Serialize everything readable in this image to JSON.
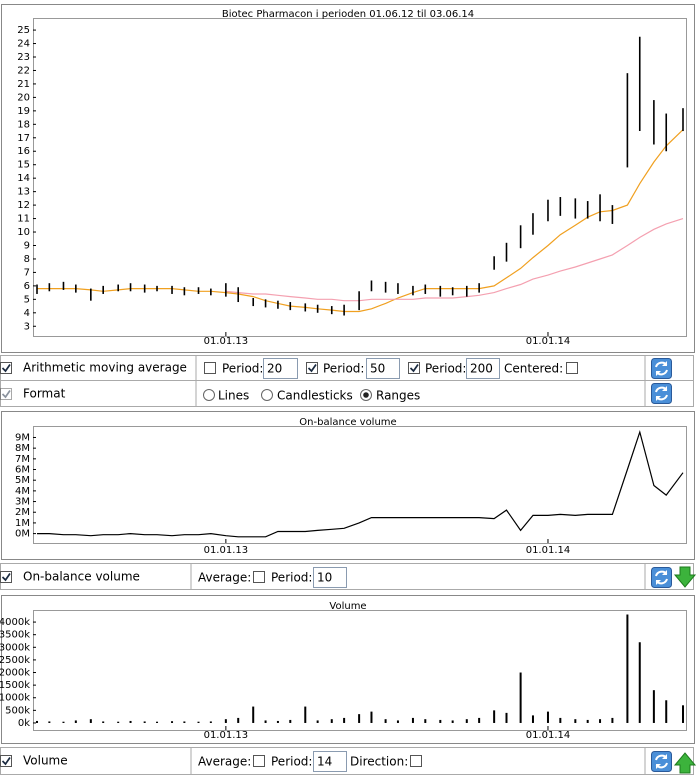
{
  "chart_data": [
    {
      "type": "range",
      "title": "Biotec Pharmacon i perioden 01.06.12 til 03.06.14",
      "x": [
        "01.06.12",
        "15.06.12",
        "01.07.12",
        "15.07.12",
        "01.08.12",
        "15.08.12",
        "01.09.12",
        "15.09.12",
        "01.10.12",
        "15.10.12",
        "01.11.12",
        "15.11.12",
        "01.12.12",
        "15.12.12",
        "01.01.13",
        "15.01.13",
        "01.02.13",
        "15.02.13",
        "01.03.13",
        "15.03.13",
        "01.04.13",
        "15.04.13",
        "01.05.13",
        "15.05.13",
        "01.06.13",
        "15.06.13",
        "01.07.13",
        "15.07.13",
        "01.08.13",
        "15.08.13",
        "01.09.13",
        "15.09.13",
        "01.10.13",
        "15.10.13",
        "01.11.13",
        "15.11.13",
        "01.12.13",
        "15.12.13",
        "01.01.14",
        "15.01.14",
        "01.02.14",
        "15.02.14",
        "01.03.14",
        "15.03.14",
        "01.04.14",
        "15.04.14",
        "01.05.14",
        "15.05.14",
        "03.06.14"
      ],
      "color": "#000000",
      "low": [
        5.4,
        5.6,
        5.7,
        5.5,
        4.9,
        5.4,
        5.6,
        5.6,
        5.5,
        5.6,
        5.4,
        5.3,
        5.4,
        5.3,
        5.2,
        4.8,
        4.5,
        4.4,
        4.3,
        4.2,
        4.1,
        4.0,
        3.9,
        3.8,
        4.2,
        5.6,
        5.5,
        5.4,
        5.3,
        5.4,
        5.2,
        5.3,
        5.2,
        5.5,
        7.2,
        7.8,
        8.8,
        9.8,
        10.8,
        11.2,
        11.0,
        11.0,
        10.8,
        10.6,
        14.8,
        17.5,
        16.5,
        16.0,
        17.5
      ],
      "high": [
        6.1,
        6.2,
        6.3,
        6.1,
        5.8,
        6.0,
        6.1,
        6.2,
        6.1,
        6.0,
        6.0,
        5.9,
        5.9,
        5.8,
        6.2,
        5.9,
        5.1,
        5.0,
        4.9,
        4.8,
        4.7,
        4.6,
        4.5,
        4.6,
        5.6,
        6.4,
        6.3,
        6.2,
        6.0,
        6.1,
        6.0,
        5.9,
        6.0,
        6.2,
        8.2,
        9.2,
        10.5,
        11.4,
        12.4,
        12.6,
        12.5,
        12.3,
        12.8,
        12.0,
        21.8,
        24.5,
        19.8,
        18.8,
        19.2
      ],
      "series": [
        {
          "color": "#f0a020",
          "values": [
            5.8,
            5.8,
            5.8,
            5.8,
            5.7,
            5.6,
            5.7,
            5.8,
            5.8,
            5.8,
            5.8,
            5.7,
            5.6,
            5.6,
            5.5,
            5.4,
            5.2,
            4.9,
            4.7,
            4.5,
            4.4,
            4.3,
            4.2,
            4.1,
            4.1,
            4.3,
            4.7,
            5.1,
            5.5,
            5.8,
            5.8,
            5.8,
            5.8,
            5.8,
            6.0,
            6.6,
            7.3,
            8.1,
            9.0,
            9.8,
            10.5,
            11.1,
            11.5,
            11.6,
            12.0,
            13.6,
            15.2,
            16.4,
            17.6
          ]
        },
        {
          "color": "#f4a0b0",
          "values": [
            null,
            null,
            null,
            null,
            null,
            null,
            null,
            null,
            null,
            null,
            null,
            null,
            null,
            null,
            5.6,
            5.5,
            5.4,
            5.4,
            5.3,
            5.2,
            5.1,
            5.0,
            5.0,
            4.9,
            4.9,
            5.0,
            5.0,
            5.0,
            5.0,
            5.1,
            5.1,
            5.1,
            5.2,
            5.3,
            5.5,
            5.8,
            6.1,
            6.5,
            6.8,
            7.1,
            7.4,
            7.7,
            8.0,
            8.3,
            9.0,
            9.6,
            10.2,
            10.6,
            11.0
          ]
        }
      ],
      "xlim": [
        "01.06.12",
        "03.06.14"
      ],
      "xticks": [
        "01.01.13",
        "01.01.14"
      ],
      "ylim": [
        2.5,
        25.6
      ],
      "yticks": [
        3,
        4,
        5,
        6,
        7,
        8,
        9,
        10,
        11,
        12,
        13,
        14,
        15,
        16,
        17,
        18,
        19,
        20,
        21,
        22,
        23,
        24,
        25
      ],
      "grid": false
    },
    {
      "type": "line",
      "title": "On-balance volume",
      "x": [
        "01.06.12",
        "15.06.12",
        "01.07.12",
        "15.07.12",
        "01.08.12",
        "15.08.12",
        "01.09.12",
        "15.09.12",
        "01.10.12",
        "15.10.12",
        "01.11.12",
        "15.11.12",
        "01.12.12",
        "15.12.12",
        "01.01.13",
        "15.01.13",
        "01.02.13",
        "15.02.13",
        "01.03.13",
        "15.03.13",
        "01.04.13",
        "15.04.13",
        "01.05.13",
        "15.05.13",
        "01.06.13",
        "15.06.13",
        "01.07.13",
        "15.07.13",
        "01.08.13",
        "15.08.13",
        "01.09.13",
        "15.09.13",
        "01.10.13",
        "15.10.13",
        "01.11.13",
        "15.11.13",
        "01.12.13",
        "15.12.13",
        "01.01.14",
        "15.01.14",
        "01.02.14",
        "15.02.14",
        "01.03.14",
        "15.03.14",
        "01.04.14",
        "15.04.14",
        "01.05.14",
        "15.05.14",
        "03.06.14"
      ],
      "color": "#000000",
      "values": [
        0.0,
        0.0,
        -0.1,
        -0.1,
        -0.2,
        -0.1,
        -0.1,
        0.0,
        -0.1,
        -0.1,
        -0.2,
        -0.1,
        -0.1,
        0.0,
        -0.2,
        -0.3,
        -0.3,
        -0.3,
        0.2,
        0.2,
        0.2,
        0.3,
        0.4,
        0.5,
        1.0,
        1.5,
        1.5,
        1.5,
        1.5,
        1.5,
        1.5,
        1.5,
        1.5,
        1.5,
        1.4,
        2.2,
        0.3,
        1.7,
        1.7,
        1.8,
        1.7,
        1.8,
        1.8,
        1.8,
        6.0,
        9.5,
        4.5,
        3.6,
        5.7
      ],
      "xlim": [
        "01.06.12",
        "03.06.14"
      ],
      "xticks": [
        "01.01.13",
        "01.01.14"
      ],
      "ylim": [
        -0.6,
        9.7
      ],
      "yticks": [
        {
          "value": 0,
          "label": "0M"
        },
        {
          "value": 1,
          "label": "1M"
        },
        {
          "value": 2,
          "label": "2M"
        },
        {
          "value": 3,
          "label": "3M"
        },
        {
          "value": 4,
          "label": "4M"
        },
        {
          "value": 5,
          "label": "5M"
        },
        {
          "value": 6,
          "label": "6M"
        },
        {
          "value": 7,
          "label": "7M"
        },
        {
          "value": 8,
          "label": "8M"
        },
        {
          "value": 9,
          "label": "9M"
        }
      ],
      "grid": false
    },
    {
      "type": "bar",
      "title": "Volume",
      "x": [
        "01.06.12",
        "15.06.12",
        "01.07.12",
        "15.07.12",
        "01.08.12",
        "15.08.12",
        "01.09.12",
        "15.09.12",
        "01.10.12",
        "15.10.12",
        "01.11.12",
        "15.11.12",
        "01.12.12",
        "15.12.12",
        "01.01.13",
        "15.01.13",
        "01.02.13",
        "15.02.13",
        "01.03.13",
        "15.03.13",
        "01.04.13",
        "15.04.13",
        "01.05.13",
        "15.05.13",
        "01.06.13",
        "15.06.13",
        "01.07.13",
        "15.07.13",
        "01.08.13",
        "15.08.13",
        "01.09.13",
        "15.09.13",
        "01.10.13",
        "15.10.13",
        "01.11.13",
        "15.11.13",
        "01.12.13",
        "15.12.13",
        "01.01.14",
        "15.01.14",
        "01.02.14",
        "15.02.14",
        "01.03.14",
        "15.03.14",
        "01.04.14",
        "15.04.14",
        "01.05.14",
        "15.05.14",
        "03.06.14"
      ],
      "color": "#000000",
      "values": [
        80,
        60,
        50,
        100,
        150,
        60,
        50,
        80,
        60,
        50,
        70,
        60,
        50,
        60,
        150,
        200,
        650,
        100,
        80,
        120,
        650,
        100,
        150,
        200,
        350,
        450,
        150,
        100,
        200,
        150,
        120,
        100,
        150,
        200,
        500,
        400,
        2000,
        300,
        450,
        200,
        150,
        120,
        150,
        200,
        4300,
        3200,
        1300,
        900,
        700
      ],
      "xlim": [
        "01.06.12",
        "03.06.14"
      ],
      "xticks": [
        "01.01.13",
        "01.01.14"
      ],
      "ylim": [
        -160,
        4320
      ],
      "yticks": [
        {
          "value": 0,
          "label": "0k"
        },
        {
          "value": 500,
          "label": "500k"
        },
        {
          "value": 1000,
          "label": "1000k"
        },
        {
          "value": 1500,
          "label": "1500k"
        },
        {
          "value": 2000,
          "label": "2000k"
        },
        {
          "value": 2500,
          "label": "2500k"
        },
        {
          "value": 3000,
          "label": "3000k"
        },
        {
          "value": 3500,
          "label": "3500k"
        },
        {
          "value": 4000,
          "label": "4000k"
        }
      ],
      "grid": false
    }
  ],
  "ma_row": {
    "label": "Arithmetic moving average",
    "period_label": "Period:",
    "periods": [
      20,
      50,
      200
    ],
    "centered_label": "Centered:"
  },
  "format_row": {
    "label": "Format",
    "options": [
      "Lines",
      "Candlesticks",
      "Ranges"
    ]
  },
  "obv_row": {
    "label": "On-balance volume",
    "average_label": "Average:",
    "period_label": "Period:",
    "period": 10
  },
  "volume_row": {
    "label": "Volume",
    "average_label": "Average:",
    "period_label": "Period:",
    "period": 14,
    "direction_label": "Direction:"
  }
}
